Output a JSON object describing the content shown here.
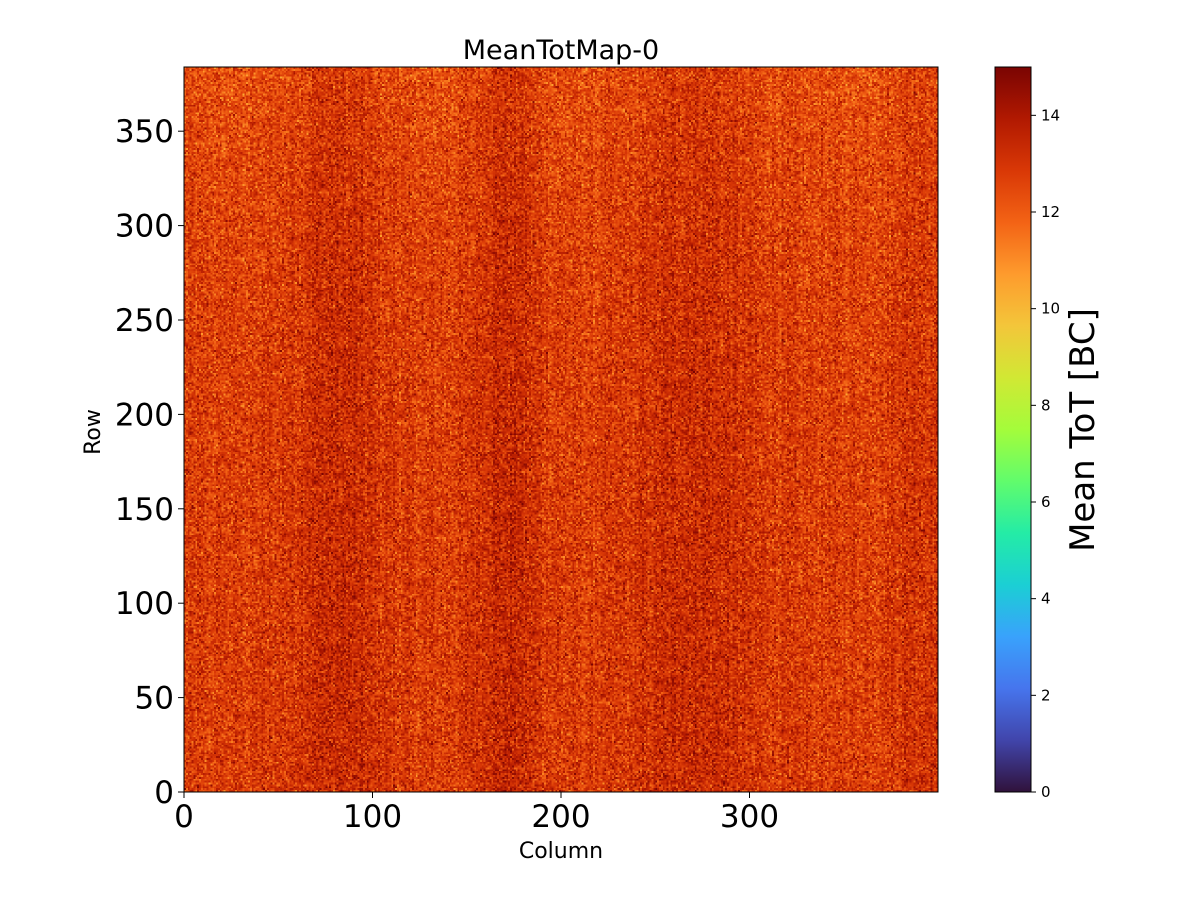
{
  "chart_data": {
    "type": "heatmap",
    "title": "MeanTotMap-0",
    "xlabel": "Column",
    "ylabel": "Row",
    "xlim": [
      0,
      400
    ],
    "ylim": [
      0,
      384
    ],
    "x_ticks": [
      0,
      100,
      200,
      300
    ],
    "y_ticks": [
      0,
      50,
      100,
      150,
      200,
      250,
      300,
      350
    ],
    "grid": false,
    "colormap": "turbo",
    "colorbar": {
      "label": "Mean ToT [BC]",
      "range": [
        0,
        15
      ],
      "ticks": [
        0,
        2,
        4,
        6,
        8,
        10,
        12,
        14
      ]
    },
    "value_summary": {
      "typical_range": [
        10,
        15
      ],
      "note": "pixel values are noisy, mostly between about 11 and 14, with darker vertical streaks around columns 80, 170 and 270"
    }
  },
  "colors": {
    "colormap_stops": [
      "#30123b",
      "#4145ab",
      "#4675ed",
      "#39a2fc",
      "#1bcfd4",
      "#24eca6",
      "#61fc6c",
      "#a4fc3b",
      "#d1e834",
      "#f3c63a",
      "#fe9b2d",
      "#f36315",
      "#d93806",
      "#b11901",
      "#7a0402"
    ]
  }
}
